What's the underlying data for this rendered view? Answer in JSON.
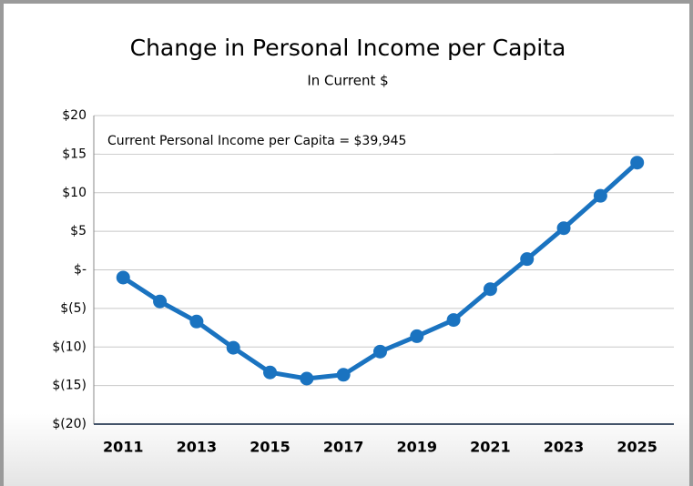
{
  "chart_data": {
    "type": "line",
    "title": "Change in Personal Income per Capita",
    "subtitle": "In Current $",
    "annotation": "Current Personal Income per Capita = $39,945",
    "x": [
      2011,
      2012,
      2013,
      2014,
      2015,
      2016,
      2017,
      2018,
      2019,
      2020,
      2021,
      2022,
      2023,
      2024,
      2025
    ],
    "series": [
      {
        "name": "Change in Personal Income per Capita",
        "color": "#1a73c0",
        "values": [
          -1.0,
          -4.1,
          -6.7,
          -10.1,
          -13.3,
          -14.1,
          -13.6,
          -10.6,
          -8.6,
          -6.5,
          -2.5,
          1.4,
          5.4,
          9.6,
          13.9
        ]
      }
    ],
    "xlim": [
      2010.2,
      2026
    ],
    "xticks": [
      2011,
      2013,
      2015,
      2017,
      2019,
      2021,
      2023,
      2025
    ],
    "ylim": [
      -20,
      20
    ],
    "yticks": [
      {
        "value": -20,
        "label": "$(20)"
      },
      {
        "value": -15,
        "label": "$(15)"
      },
      {
        "value": -10,
        "label": "$(10)"
      },
      {
        "value": -5,
        "label": "$(5)"
      },
      {
        "value": 0,
        "label": "$-"
      },
      {
        "value": 5,
        "label": "$5"
      },
      {
        "value": 10,
        "label": "$10"
      },
      {
        "value": 15,
        "label": "$15"
      },
      {
        "value": 20,
        "label": "$20"
      }
    ],
    "grid": true
  }
}
